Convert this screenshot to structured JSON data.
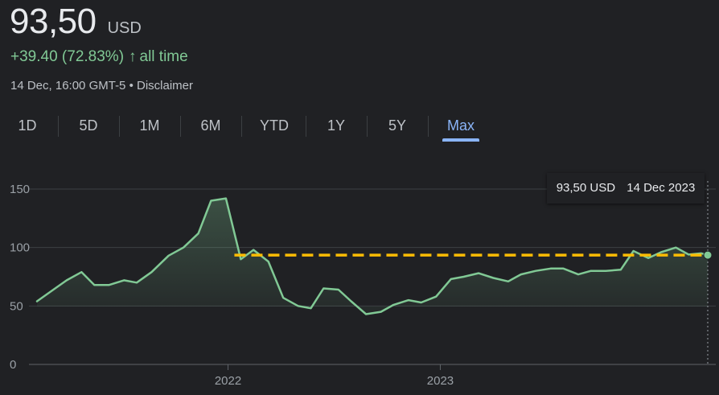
{
  "quote": {
    "price": "93,50",
    "currency": "USD",
    "change": "+39.40 (72.83%)",
    "change_arrow": "↑",
    "change_period": "all time",
    "timestamp": "14 Dec, 16:00 GMT-5",
    "disclaimer": "• Disclaimer"
  },
  "tabs": [
    {
      "label": "1D",
      "active": false
    },
    {
      "label": "5D",
      "active": false
    },
    {
      "label": "1M",
      "active": false
    },
    {
      "label": "6M",
      "active": false
    },
    {
      "label": "YTD",
      "active": false
    },
    {
      "label": "1Y",
      "active": false
    },
    {
      "label": "5Y",
      "active": false
    },
    {
      "label": "Max",
      "active": true
    }
  ],
  "tooltip": {
    "value": "93,50 USD",
    "date": "14 Dec 2023"
  },
  "colors": {
    "background": "#202124",
    "line": "#81c995",
    "reference": "#fbbc04",
    "active_tab": "#8ab4f8"
  },
  "chart_data": {
    "type": "line",
    "title": "",
    "xlabel": "",
    "ylabel": "",
    "ylim": [
      0,
      150
    ],
    "yticks": [
      0,
      50,
      100,
      150
    ],
    "xticks": [
      {
        "label": "2022",
        "x": 2022.0
      },
      {
        "label": "2023",
        "x": 2023.0
      }
    ],
    "x_start": 2021.1,
    "x_end": 2024.26,
    "reference_value": 93.5,
    "reference_start_x": 2022.03,
    "series": [
      {
        "values": [
          [
            2021.1,
            54
          ],
          [
            2021.17,
            63
          ],
          [
            2021.24,
            72
          ],
          [
            2021.31,
            79
          ],
          [
            2021.37,
            68
          ],
          [
            2021.44,
            68
          ],
          [
            2021.51,
            72
          ],
          [
            2021.57,
            70
          ],
          [
            2021.64,
            79
          ],
          [
            2021.72,
            93
          ],
          [
            2021.79,
            100
          ],
          [
            2021.86,
            112
          ],
          [
            2021.92,
            140
          ],
          [
            2021.99,
            142
          ],
          [
            2022.06,
            90
          ],
          [
            2022.12,
            98
          ],
          [
            2022.19,
            88
          ],
          [
            2022.26,
            57
          ],
          [
            2022.33,
            50
          ],
          [
            2022.39,
            48
          ],
          [
            2022.45,
            65
          ],
          [
            2022.52,
            64
          ],
          [
            2022.58,
            54
          ],
          [
            2022.65,
            43
          ],
          [
            2022.72,
            45
          ],
          [
            2022.78,
            51
          ],
          [
            2022.85,
            55
          ],
          [
            2022.91,
            53
          ],
          [
            2022.98,
            58
          ],
          [
            2023.05,
            73
          ],
          [
            2023.11,
            75
          ],
          [
            2023.18,
            78
          ],
          [
            2023.25,
            74
          ],
          [
            2023.32,
            71
          ],
          [
            2023.38,
            77
          ],
          [
            2023.45,
            80
          ],
          [
            2023.52,
            82
          ],
          [
            2023.58,
            82
          ],
          [
            2023.65,
            77
          ],
          [
            2023.71,
            80
          ],
          [
            2023.78,
            80
          ],
          [
            2023.85,
            81
          ],
          [
            2023.91,
            97
          ],
          [
            2023.98,
            91
          ],
          [
            2024.04,
            96
          ],
          [
            2024.11,
            100
          ],
          [
            2024.17,
            94
          ],
          [
            2024.23,
            95
          ],
          [
            2024.26,
            93.5
          ]
        ]
      }
    ]
  }
}
